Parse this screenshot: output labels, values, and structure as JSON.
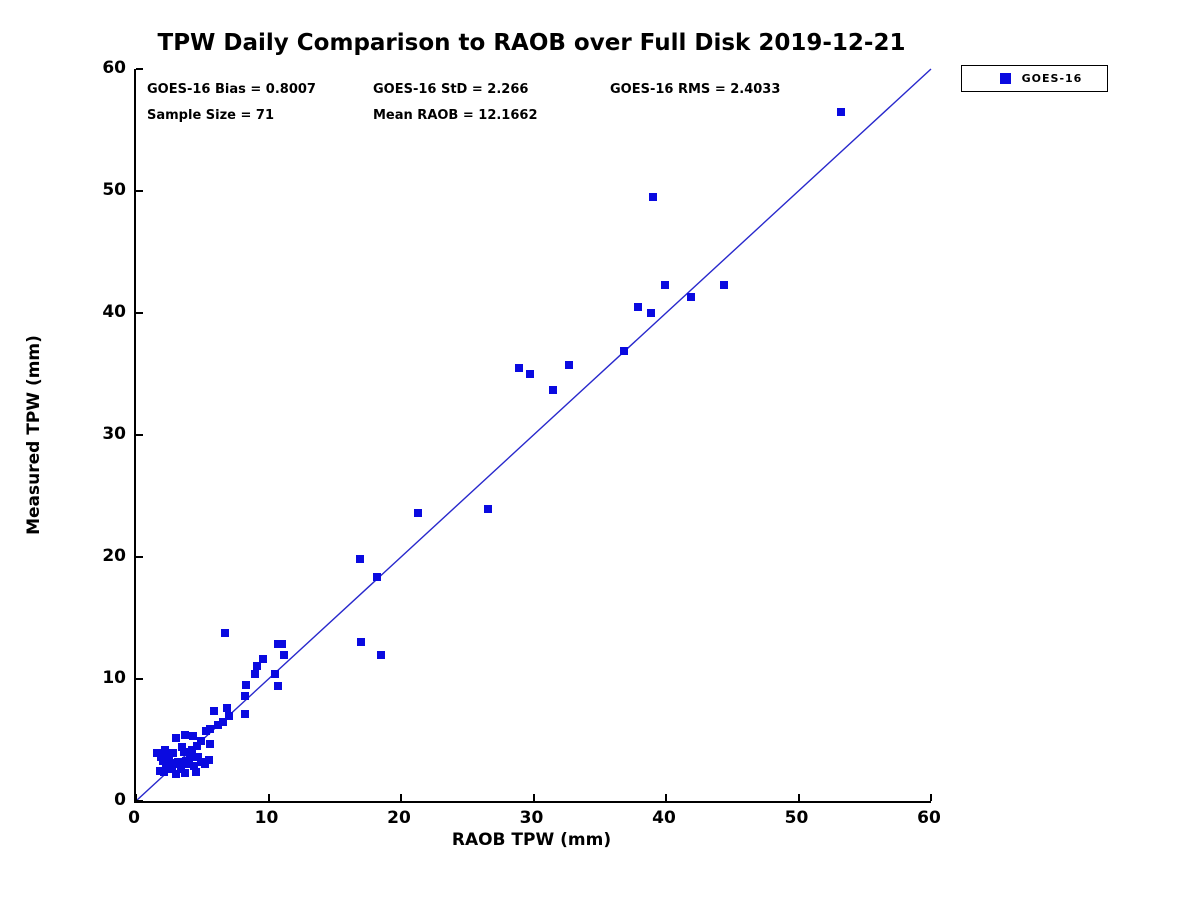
{
  "title": "TPW Daily Comparison to RAOB over Full Disk 2019-12-21",
  "stats": {
    "bias": "GOES-16 Bias = 0.8007",
    "std": "GOES-16 StD = 2.266",
    "rms": "GOES-16 RMS = 2.4033",
    "sample_size": "Sample Size = 71",
    "mean_raob": "Mean RAOB = 12.1662"
  },
  "legend": {
    "label": "GOES-16"
  },
  "colors": {
    "marker": "#0a0ae0",
    "reference_line": "#2828cc",
    "axis": "#000000",
    "text": "#000000"
  },
  "chart_data": {
    "type": "scatter",
    "title": "TPW Daily Comparison to RAOB over Full Disk 2019-12-21",
    "xlabel": "RAOB TPW (mm)",
    "ylabel": "Measured TPW (mm)",
    "xlim": [
      0,
      60
    ],
    "ylim": [
      0,
      60
    ],
    "xticks": [
      0,
      10,
      20,
      30,
      40,
      50,
      60
    ],
    "yticks": [
      0,
      10,
      20,
      30,
      40,
      50,
      60
    ],
    "grid": false,
    "legend_position": "outside-top-right",
    "reference_line": {
      "from": [
        0,
        0
      ],
      "to": [
        60,
        60
      ]
    },
    "series": [
      {
        "name": "GOES-16",
        "marker": "square",
        "points": [
          [
            53.2,
            56.5
          ],
          [
            39.0,
            49.5
          ],
          [
            39.9,
            42.3
          ],
          [
            44.4,
            42.3
          ],
          [
            41.9,
            41.3
          ],
          [
            37.9,
            40.5
          ],
          [
            38.9,
            40.0
          ],
          [
            36.8,
            36.9
          ],
          [
            32.7,
            35.7
          ],
          [
            28.9,
            35.5
          ],
          [
            29.7,
            35.0
          ],
          [
            31.5,
            33.7
          ],
          [
            26.6,
            23.9
          ],
          [
            21.3,
            23.6
          ],
          [
            16.9,
            19.8
          ],
          [
            18.2,
            18.4
          ],
          [
            17.0,
            13.0
          ],
          [
            18.5,
            12.0
          ],
          [
            6.7,
            13.8
          ],
          [
            10.7,
            12.85
          ],
          [
            11.05,
            12.85
          ],
          [
            11.2,
            12.0
          ],
          [
            9.6,
            11.6
          ],
          [
            9.1,
            11.1
          ],
          [
            9.0,
            10.4
          ],
          [
            10.5,
            10.4
          ],
          [
            10.7,
            9.4
          ],
          [
            8.3,
            9.5
          ],
          [
            8.2,
            8.6
          ],
          [
            1.6,
            3.9
          ],
          [
            1.9,
            3.6
          ],
          [
            2.0,
            3.3
          ],
          [
            2.2,
            4.2
          ],
          [
            2.5,
            3.6
          ],
          [
            2.6,
            3.1
          ],
          [
            2.8,
            3.9
          ],
          [
            3.0,
            5.2
          ],
          [
            3.2,
            3.2
          ],
          [
            3.3,
            3.0
          ],
          [
            3.6,
            4.0
          ],
          [
            3.7,
            5.4
          ],
          [
            3.8,
            3.3
          ],
          [
            4.0,
            3.0
          ],
          [
            4.2,
            4.2
          ],
          [
            4.3,
            5.3
          ],
          [
            4.4,
            2.9
          ],
          [
            4.5,
            2.4
          ],
          [
            4.7,
            3.6
          ],
          [
            4.9,
            4.9
          ],
          [
            4.9,
            3.2
          ],
          [
            5.2,
            3.0
          ],
          [
            5.3,
            5.7
          ],
          [
            5.5,
            3.4
          ],
          [
            5.6,
            4.7
          ],
          [
            5.6,
            5.9
          ],
          [
            5.9,
            7.4
          ],
          [
            6.2,
            6.2
          ],
          [
            6.6,
            6.5
          ],
          [
            6.9,
            7.6
          ],
          [
            7.0,
            7.0
          ],
          [
            8.2,
            7.1
          ],
          [
            3.0,
            2.2
          ],
          [
            3.7,
            2.3
          ],
          [
            2.3,
            2.9
          ],
          [
            1.8,
            2.5
          ],
          [
            2.1,
            2.4
          ],
          [
            2.7,
            2.6
          ],
          [
            3.4,
            2.6
          ],
          [
            4.1,
            3.6
          ],
          [
            3.5,
            4.4
          ],
          [
            4.6,
            4.5
          ]
        ]
      }
    ]
  }
}
